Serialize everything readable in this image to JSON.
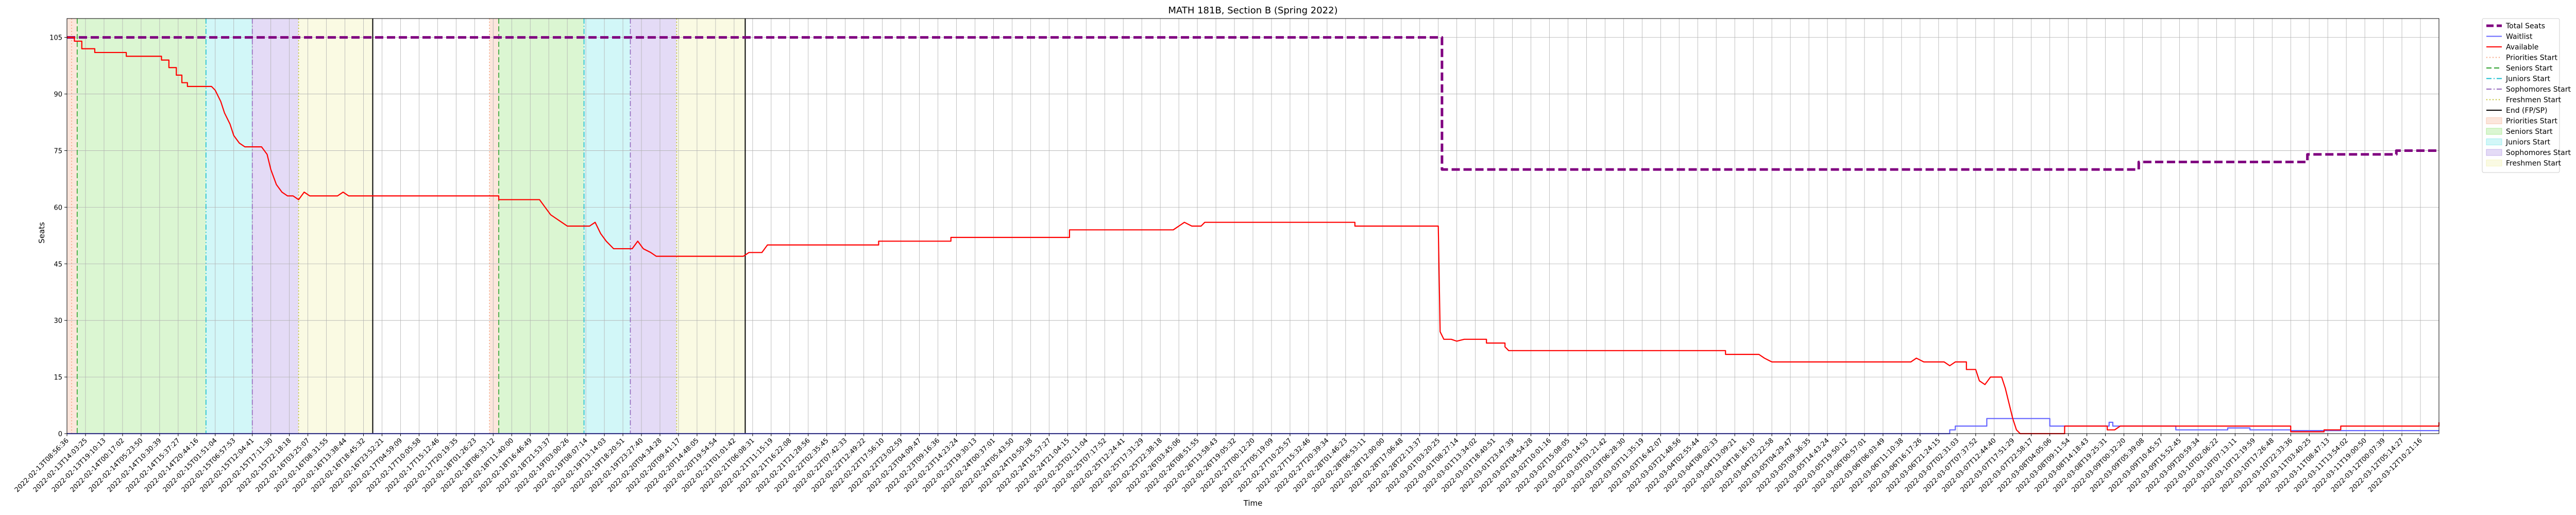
{
  "chart_data": {
    "type": "line",
    "title": "MATH 181B, Section B (Spring 2022)",
    "xlabel": "Time",
    "ylabel": "Seats",
    "ylim": [
      0,
      110
    ],
    "yticks": [
      0,
      15,
      30,
      45,
      60,
      75,
      90,
      105
    ],
    "xlim": [
      0,
      128
    ],
    "grid": true,
    "legend_position": "outside-right",
    "x_tick_labels": [
      "2022-02-13T08:56:36",
      "2022-02-13T14:03:25",
      "2022-02-13T19:10:13",
      "2022-02-14T00:17:02",
      "2022-02-14T05:23:50",
      "2022-02-14T10:30:39",
      "2022-02-14T15:37:27",
      "2022-02-14T20:44:16",
      "2022-02-15T01:51:04",
      "2022-02-15T06:57:53",
      "2022-02-15T12:04:41",
      "2022-02-15T17:11:30",
      "2022-02-15T22:18:18",
      "2022-02-16T03:25:07",
      "2022-02-16T08:31:55",
      "2022-02-16T13:38:44",
      "2022-02-16T18:45:32",
      "2022-02-16T23:52:21",
      "2022-02-17T04:59:09",
      "2022-02-17T10:05:58",
      "2022-02-17T15:12:46",
      "2022-02-17T20:19:35",
      "2022-02-18T01:26:23",
      "2022-02-18T06:33:12",
      "2022-02-18T11:40:00",
      "2022-02-18T16:46:49",
      "2022-02-18T21:53:37",
      "2022-02-19T03:00:26",
      "2022-02-19T08:07:14",
      "2022-02-19T13:14:03",
      "2022-02-19T18:20:51",
      "2022-02-19T23:27:40",
      "2022-02-20T04:34:28",
      "2022-02-20T09:41:17",
      "2022-02-20T14:48:05",
      "2022-02-20T19:54:54",
      "2022-02-21T01:01:42",
      "2022-02-21T06:08:31",
      "2022-02-21T11:15:19",
      "2022-02-21T16:22:08",
      "2022-02-21T21:28:56",
      "2022-02-22T02:35:45",
      "2022-02-22T07:42:33",
      "2022-02-22T12:49:22",
      "2022-02-22T17:56:10",
      "2022-02-22T23:02:59",
      "2022-02-23T04:09:47",
      "2022-02-23T09:16:36",
      "2022-02-23T14:23:24",
      "2022-02-23T19:30:13",
      "2022-02-24T00:37:01",
      "2022-02-24T05:43:50",
      "2022-02-24T10:50:38",
      "2022-02-24T15:57:27",
      "2022-02-24T21:04:15",
      "2022-02-25T02:11:04",
      "2022-02-25T07:17:52",
      "2022-02-25T12:24:41",
      "2022-02-25T17:31:29",
      "2022-02-25T22:38:18",
      "2022-02-26T03:45:06",
      "2022-02-26T08:51:55",
      "2022-02-26T13:58:43",
      "2022-02-26T19:05:32",
      "2022-02-27T00:12:20",
      "2022-02-27T05:19:09",
      "2022-02-27T10:25:57",
      "2022-02-27T15:32:46",
      "2022-02-27T20:39:34",
      "2022-02-28T01:46:23",
      "2022-02-28T06:53:11",
      "2022-02-28T12:00:00",
      "2022-02-28T17:06:48",
      "2022-02-28T22:13:37",
      "2022-03-01T03:20:25",
      "2022-03-01T08:27:14",
      "2022-03-01T13:34:02",
      "2022-03-01T18:40:51",
      "2022-03-01T23:47:39",
      "2022-03-02T04:54:28",
      "2022-03-02T10:01:16",
      "2022-03-02T15:08:05",
      "2022-03-02T20:14:53",
      "2022-03-03T01:21:42",
      "2022-03-03T06:28:30",
      "2022-03-03T11:35:19",
      "2022-03-03T16:42:07",
      "2022-03-03T21:48:56",
      "2022-03-04T02:55:44",
      "2022-03-04T08:02:33",
      "2022-03-04T13:09:21",
      "2022-03-04T18:16:10",
      "2022-03-04T23:22:58",
      "2022-03-05T04:29:47",
      "2022-03-05T09:36:35",
      "2022-03-05T14:43:24",
      "2022-03-05T19:50:12",
      "2022-03-06T00:57:01",
      "2022-03-06T06:03:49",
      "2022-03-06T11:10:38",
      "2022-03-06T16:17:26",
      "2022-03-06T21:24:15",
      "2022-03-07T02:31:03",
      "2022-03-07T07:37:52",
      "2022-03-07T12:44:40",
      "2022-03-07T17:51:29",
      "2022-03-07T22:58:17",
      "2022-03-08T04:05:06",
      "2022-03-08T09:11:54",
      "2022-03-08T14:18:43",
      "2022-03-08T19:25:31",
      "2022-03-09T00:32:20",
      "2022-03-09T05:39:08",
      "2022-03-09T10:45:57",
      "2022-03-09T15:52:45",
      "2022-03-09T20:59:34",
      "2022-03-10T02:06:22",
      "2022-03-10T07:13:11",
      "2022-03-10T12:19:59",
      "2022-03-10T17:26:48",
      "2022-03-10T22:33:36",
      "2022-03-11T03:40:25",
      "2022-03-11T08:47:13",
      "2022-03-11T13:54:02",
      "2022-03-11T19:00:50",
      "2022-03-12T00:07:39",
      "2022-03-12T05:14:27",
      "2022-03-12T10:21:16"
    ],
    "series": [
      {
        "name": "Total Seats",
        "color": "#800080",
        "style": "dashed",
        "points": [
          [
            0,
            105
          ],
          [
            74.2,
            105
          ],
          [
            74.2,
            70
          ],
          [
            111.8,
            70
          ],
          [
            111.8,
            72
          ],
          [
            120.9,
            72
          ],
          [
            120.9,
            74
          ],
          [
            125.7,
            74
          ],
          [
            125.7,
            75
          ],
          [
            128,
            75
          ]
        ]
      },
      {
        "name": "Waitlist",
        "color": "#6666ff",
        "style": "solid",
        "points": [
          [
            0,
            0
          ],
          [
            101.6,
            0
          ],
          [
            101.6,
            1
          ],
          [
            101.9,
            1
          ],
          [
            101.9,
            2
          ],
          [
            103.6,
            2
          ],
          [
            103.6,
            4
          ],
          [
            107,
            4
          ],
          [
            107,
            2
          ],
          [
            110.2,
            2
          ],
          [
            110.2,
            3
          ],
          [
            110.4,
            3
          ],
          [
            110.4,
            2
          ],
          [
            113.8,
            2
          ],
          [
            113.8,
            1
          ],
          [
            116.6,
            1
          ],
          [
            116.6,
            1.5
          ],
          [
            117.8,
            1.5
          ],
          [
            117.8,
            1
          ],
          [
            120,
            1
          ],
          [
            120,
            0.8
          ],
          [
            128,
            0.8
          ]
        ]
      },
      {
        "name": "Available",
        "color": "#ff0000",
        "style": "solid",
        "points": [
          [
            0,
            105
          ],
          [
            0.4,
            105
          ],
          [
            0.4,
            104
          ],
          [
            0.8,
            104
          ],
          [
            0.8,
            102
          ],
          [
            1.5,
            102
          ],
          [
            1.5,
            101
          ],
          [
            3.2,
            101
          ],
          [
            3.2,
            100
          ],
          [
            5.1,
            100
          ],
          [
            5.1,
            99
          ],
          [
            5.5,
            99
          ],
          [
            5.5,
            97
          ],
          [
            5.9,
            97
          ],
          [
            5.9,
            95
          ],
          [
            6.2,
            95
          ],
          [
            6.2,
            93
          ],
          [
            6.5,
            93
          ],
          [
            6.5,
            92
          ],
          [
            7.8,
            92
          ],
          [
            8,
            91
          ],
          [
            8.3,
            88
          ],
          [
            8.5,
            85
          ],
          [
            8.8,
            82
          ],
          [
            9,
            79
          ],
          [
            9.3,
            77
          ],
          [
            9.6,
            76
          ],
          [
            10.5,
            76
          ],
          [
            10.8,
            74
          ],
          [
            11,
            70
          ],
          [
            11.3,
            66
          ],
          [
            11.6,
            64
          ],
          [
            11.9,
            63
          ],
          [
            12.2,
            63
          ],
          [
            12.5,
            62
          ],
          [
            12.8,
            64
          ],
          [
            13.1,
            63
          ],
          [
            14.6,
            63
          ],
          [
            14.9,
            64
          ],
          [
            15.2,
            63
          ],
          [
            23.3,
            63
          ],
          [
            23.3,
            62
          ],
          [
            25.5,
            62
          ],
          [
            25.8,
            60
          ],
          [
            26.1,
            58
          ],
          [
            26.4,
            57
          ],
          [
            26.7,
            56
          ],
          [
            27,
            55
          ],
          [
            28.2,
            55
          ],
          [
            28.5,
            56
          ],
          [
            28.8,
            53
          ],
          [
            29.1,
            51
          ],
          [
            29.5,
            49
          ],
          [
            30.5,
            49
          ],
          [
            30.8,
            51
          ],
          [
            31.1,
            49
          ],
          [
            31.5,
            48
          ],
          [
            31.8,
            47
          ],
          [
            36.5,
            47
          ],
          [
            36.8,
            48
          ],
          [
            37.5,
            48
          ],
          [
            37.8,
            50
          ],
          [
            43.8,
            50
          ],
          [
            43.8,
            51
          ],
          [
            47.7,
            51
          ],
          [
            47.7,
            52
          ],
          [
            54.1,
            52
          ],
          [
            54.1,
            54
          ],
          [
            59.7,
            54
          ],
          [
            60,
            55
          ],
          [
            60.3,
            56
          ],
          [
            60.7,
            55
          ],
          [
            61.2,
            55
          ],
          [
            61.4,
            56
          ],
          [
            69.5,
            56
          ],
          [
            69.5,
            55
          ],
          [
            74,
            55
          ],
          [
            74.1,
            27
          ],
          [
            74.3,
            25
          ],
          [
            74.7,
            25
          ],
          [
            75,
            24.5
          ],
          [
            75.4,
            25
          ],
          [
            76.6,
            25
          ],
          [
            76.6,
            24
          ],
          [
            77.6,
            24
          ],
          [
            77.6,
            23
          ],
          [
            77.8,
            22
          ],
          [
            89.5,
            22
          ],
          [
            89.5,
            21
          ],
          [
            91.3,
            21
          ],
          [
            91.6,
            20
          ],
          [
            92,
            19
          ],
          [
            99.5,
            19
          ],
          [
            99.8,
            20
          ],
          [
            100.2,
            19
          ],
          [
            101.3,
            19
          ],
          [
            101.6,
            18
          ],
          [
            101.9,
            19
          ],
          [
            102.5,
            19
          ],
          [
            102.5,
            17
          ],
          [
            103,
            17
          ],
          [
            103.2,
            14
          ],
          [
            103.5,
            13
          ],
          [
            103.8,
            15
          ],
          [
            104.1,
            15
          ],
          [
            104.4,
            15
          ],
          [
            104.6,
            12
          ],
          [
            104.8,
            8
          ],
          [
            105,
            4
          ],
          [
            105.2,
            1
          ],
          [
            105.4,
            0
          ],
          [
            107.8,
            0
          ],
          [
            107.8,
            2
          ],
          [
            110.1,
            2
          ],
          [
            110.1,
            1
          ],
          [
            110.5,
            1
          ],
          [
            110.8,
            2
          ],
          [
            120,
            2
          ],
          [
            120,
            0.5
          ],
          [
            121.8,
            0.5
          ],
          [
            121.8,
            1
          ],
          [
            122.7,
            1
          ],
          [
            122.7,
            2
          ],
          [
            128,
            2
          ],
          [
            128,
            3
          ]
        ]
      }
    ],
    "events": [
      {
        "label": "Priorities Start",
        "x": 0.25,
        "color": "#f4a582",
        "style": "dotted"
      },
      {
        "label": "Seniors Start",
        "x": 0.55,
        "color": "#2ca02c",
        "style": "dashed"
      },
      {
        "label": "Juniors Start",
        "x": 7.5,
        "color": "#17becf",
        "style": "dashdot"
      },
      {
        "label": "Sophomores Start",
        "x": 10.0,
        "color": "#9467bd",
        "style": "dashdot"
      },
      {
        "label": "Freshmen Start",
        "x": 12.5,
        "color": "#bcbd22",
        "style": "dotted"
      },
      {
        "label": "End (FP/SP)",
        "x": 16.5,
        "color": "#000000",
        "style": "solid"
      },
      {
        "label": "Priorities Start",
        "x": 22.8,
        "color": "#f4a582",
        "style": "dotted"
      },
      {
        "label": "Seniors Start",
        "x": 23.3,
        "color": "#2ca02c",
        "style": "dashed"
      },
      {
        "label": "Juniors Start",
        "x": 27.9,
        "color": "#17becf",
        "style": "dashdot"
      },
      {
        "label": "Sophomores Start",
        "x": 30.4,
        "color": "#9467bd",
        "style": "dashdot"
      },
      {
        "label": "Freshmen Start",
        "x": 32.9,
        "color": "#bcbd22",
        "style": "dotted"
      },
      {
        "label": "End (FP/SP)",
        "x": 36.6,
        "color": "#000000",
        "style": "solid"
      }
    ],
    "regions": [
      {
        "label": "Priorities Start",
        "x0": 0,
        "x1": 0.55,
        "color": "#f4a582"
      },
      {
        "label": "Seniors Start",
        "x0": 0.55,
        "x1": 7.5,
        "color": "#7ddf5c"
      },
      {
        "label": "Juniors Start",
        "x0": 7.5,
        "x1": 10.0,
        "color": "#5ce1e6"
      },
      {
        "label": "Sophomores Start",
        "x0": 10.0,
        "x1": 12.5,
        "color": "#9f7fe0"
      },
      {
        "label": "Freshmen Start",
        "x0": 12.5,
        "x1": 16.5,
        "color": "#eeee99"
      },
      {
        "label": "Priorities Start",
        "x0": 22.8,
        "x1": 23.3,
        "color": "#f4a582"
      },
      {
        "label": "Seniors Start",
        "x0": 23.3,
        "x1": 27.9,
        "color": "#7ddf5c"
      },
      {
        "label": "Juniors Start",
        "x0": 27.9,
        "x1": 30.4,
        "color": "#5ce1e6"
      },
      {
        "label": "Sophomores Start",
        "x0": 30.4,
        "x1": 32.9,
        "color": "#9f7fe0"
      },
      {
        "label": "Freshmen Start",
        "x0": 32.9,
        "x1": 36.6,
        "color": "#eeee99"
      }
    ],
    "legend": [
      {
        "label": "Total Seats",
        "kind": "line",
        "color": "#800080",
        "style": "dashed-thick"
      },
      {
        "label": "Waitlist",
        "kind": "line",
        "color": "#6666ff",
        "style": "solid"
      },
      {
        "label": "Available",
        "kind": "line",
        "color": "#ff0000",
        "style": "solid"
      },
      {
        "label": "Priorities Start",
        "kind": "line",
        "color": "#f4a582",
        "style": "dotted"
      },
      {
        "label": "Seniors Start",
        "kind": "line",
        "color": "#2ca02c",
        "style": "dashed"
      },
      {
        "label": "Juniors Start",
        "kind": "line",
        "color": "#17becf",
        "style": "dashdot"
      },
      {
        "label": "Sophomores Start",
        "kind": "line",
        "color": "#9467bd",
        "style": "dashdot"
      },
      {
        "label": "Freshmen Start",
        "kind": "line",
        "color": "#bcbd22",
        "style": "dotted"
      },
      {
        "label": "End (FP/SP)",
        "kind": "line",
        "color": "#000000",
        "style": "solid"
      },
      {
        "label": "Priorities Start",
        "kind": "patch",
        "color": "#f4a582"
      },
      {
        "label": "Seniors Start",
        "kind": "patch",
        "color": "#7ddf5c"
      },
      {
        "label": "Juniors Start",
        "kind": "patch",
        "color": "#5ce1e6"
      },
      {
        "label": "Sophomores Start",
        "kind": "patch",
        "color": "#9f7fe0"
      },
      {
        "label": "Freshmen Start",
        "kind": "patch",
        "color": "#eeee99"
      }
    ]
  }
}
